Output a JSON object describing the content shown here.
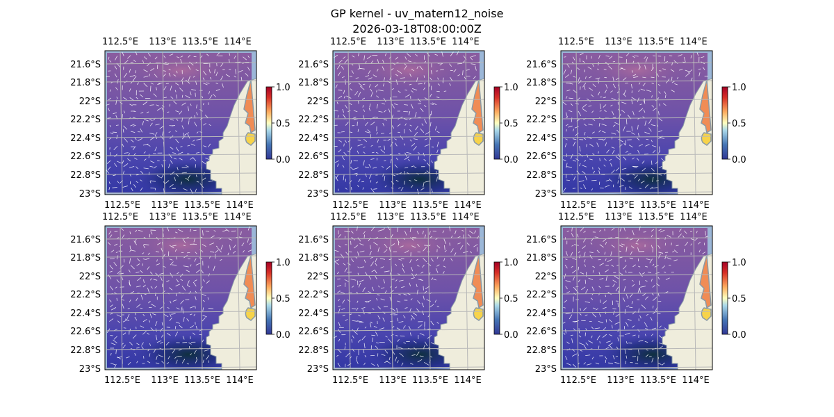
{
  "figure": {
    "title": "GP kernel - uv_matern12_noise",
    "timestamp": "2026-03-18T08:00:00Z"
  },
  "map": {
    "lon_ticks": [
      "112.5°E",
      "113°E",
      "113.5°E",
      "114°E"
    ],
    "lat_ticks": [
      "21.6°S",
      "21.8°S",
      "22°S",
      "22.2°S",
      "22.4°S",
      "22.6°S",
      "22.8°S",
      "23°S"
    ],
    "panel_count": 6,
    "colors": {
      "ocean": "#9cb7d8",
      "land": "#efeddc",
      "coast": "#8a9aa6",
      "grid": "#b8b8b8",
      "vectors": "#ffffff"
    }
  },
  "colorbar": {
    "ticks": [
      "0.0",
      "0.5",
      "1.0"
    ],
    "colormap": "RdYlBu_r"
  }
}
